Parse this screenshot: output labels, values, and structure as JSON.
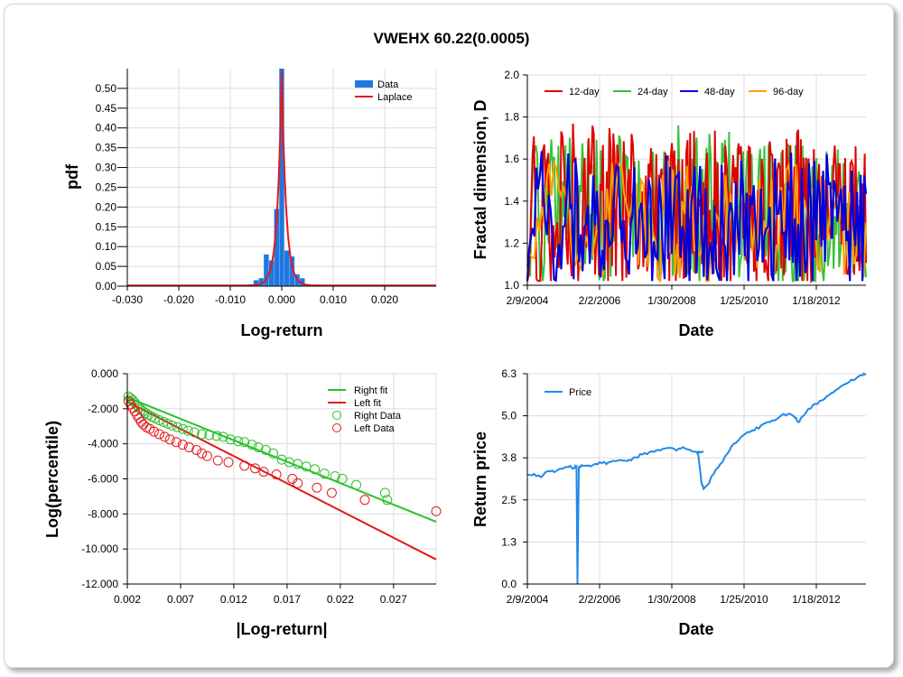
{
  "title": "VWEHX 60.22(0.0005)",
  "chart_data": [
    {
      "type": "bar",
      "id": "pdf",
      "xlabel": "Log-return",
      "ylabel": "pdf",
      "xlim": [
        -0.03,
        0.03
      ],
      "ylim": [
        0,
        0.55
      ],
      "x_ticks": [
        "-0.030",
        "-0.020",
        "-0.010",
        "0.000",
        "0.010",
        "0.020"
      ],
      "x_tick_values": [
        -0.03,
        -0.02,
        -0.01,
        0.0,
        0.01,
        0.02
      ],
      "y_ticks": [
        "0.00",
        "0.05",
        "0.10",
        "0.15",
        "0.20",
        "0.25",
        "0.30",
        "0.35",
        "0.40",
        "0.45",
        "0.50"
      ],
      "y_tick_values": [
        0,
        0.05,
        0.1,
        0.15,
        0.2,
        0.25,
        0.3,
        0.35,
        0.4,
        0.45,
        0.5
      ],
      "legend": [
        "Data",
        "Laplace"
      ],
      "bar_width": 0.001,
      "bars": [
        {
          "x": -0.006,
          "y": 0.005
        },
        {
          "x": -0.005,
          "y": 0.015
        },
        {
          "x": -0.004,
          "y": 0.02
        },
        {
          "x": -0.003,
          "y": 0.08
        },
        {
          "x": -0.002,
          "y": 0.065
        },
        {
          "x": -0.001,
          "y": 0.195
        },
        {
          "x": 0.0,
          "y": 0.55
        },
        {
          "x": 0.001,
          "y": 0.09
        },
        {
          "x": 0.002,
          "y": 0.075
        },
        {
          "x": 0.003,
          "y": 0.03
        },
        {
          "x": 0.004,
          "y": 0.02
        },
        {
          "x": 0.005,
          "y": 0.005
        },
        {
          "x": 0.007,
          "y": 0.004
        },
        {
          "x": 0.009,
          "y": 0.003
        },
        {
          "x": 0.011,
          "y": 0.003
        },
        {
          "x": 0.014,
          "y": 0.002
        },
        {
          "x": 0.016,
          "y": 0.002
        },
        {
          "x": 0.019,
          "y": 0.002
        },
        {
          "x": 0.021,
          "y": 0.002
        }
      ],
      "laplace": {
        "center": 0.0,
        "peak": 0.54,
        "scale": 0.00085
      },
      "colors": {
        "bars": "#1f78e0",
        "fit": "#e31a1c"
      }
    },
    {
      "type": "line",
      "id": "fractal",
      "xlabel": "Date",
      "ylabel": "Fractal dimension, D",
      "ylim": [
        1.0,
        2.0
      ],
      "x_ticks": [
        "2/9/2004",
        "2/2/2006",
        "1/30/2008",
        "1/25/2010",
        "1/18/2012"
      ],
      "y_ticks": [
        "1.0",
        "1.2",
        "1.4",
        "1.6",
        "1.8",
        "2.0"
      ],
      "y_tick_values": [
        1.0,
        1.2,
        1.4,
        1.6,
        1.8,
        2.0
      ],
      "series": [
        {
          "name": "12-day",
          "color": "#e00000"
        },
        {
          "name": "24-day",
          "color": "#3cc03c"
        },
        {
          "name": "48-day",
          "color": "#0000dd"
        },
        {
          "name": "96-day",
          "color": "#ffa000"
        }
      ]
    },
    {
      "type": "scatter",
      "id": "tail",
      "xlabel": "|Log-return|",
      "ylabel": "Log(percentile)",
      "xlim": [
        0.002,
        0.031
      ],
      "ylim": [
        -12.0,
        0.0
      ],
      "x_ticks": [
        "0.002",
        "0.007",
        "0.012",
        "0.017",
        "0.022",
        "0.027"
      ],
      "x_tick_values": [
        0.002,
        0.007,
        0.012,
        0.017,
        0.022,
        0.027
      ],
      "y_ticks": [
        "0.000",
        "-2.000",
        "-4.000",
        "-6.000",
        "-8.000",
        "-10.000",
        "-12.000"
      ],
      "y_tick_values": [
        0,
        -2,
        -4,
        -6,
        -8,
        -10,
        -12
      ],
      "series": [
        {
          "name": "Right fit",
          "color": "#2cc02c",
          "line": [
            [
              0.002,
              -1.35
            ],
            [
              0.031,
              -8.45
            ]
          ]
        },
        {
          "name": "Left fit",
          "color": "#e31a1c",
          "line": [
            [
              0.002,
              -1.6
            ],
            [
              0.031,
              -10.6
            ]
          ]
        },
        {
          "name": "Right Data",
          "color": "#2cc02c",
          "points": [
            [
              0.0021,
              -1.3
            ],
            [
              0.0023,
              -1.4
            ],
            [
              0.0025,
              -1.5
            ],
            [
              0.0027,
              -1.65
            ],
            [
              0.0029,
              -1.8
            ],
            [
              0.0031,
              -1.95
            ],
            [
              0.0033,
              -2.05
            ],
            [
              0.0035,
              -2.15
            ],
            [
              0.0037,
              -2.25
            ],
            [
              0.004,
              -2.35
            ],
            [
              0.0043,
              -2.45
            ],
            [
              0.0046,
              -2.55
            ],
            [
              0.005,
              -2.65
            ],
            [
              0.0054,
              -2.75
            ],
            [
              0.0058,
              -2.85
            ],
            [
              0.0062,
              -2.95
            ],
            [
              0.0067,
              -3.05
            ],
            [
              0.0072,
              -3.15
            ],
            [
              0.0077,
              -3.25
            ],
            [
              0.0083,
              -3.35
            ],
            [
              0.009,
              -3.45
            ],
            [
              0.0097,
              -3.5
            ],
            [
              0.0104,
              -3.55
            ],
            [
              0.011,
              -3.6
            ],
            [
              0.0117,
              -3.75
            ],
            [
              0.0124,
              -3.85
            ],
            [
              0.013,
              -3.9
            ],
            [
              0.0137,
              -4.05
            ],
            [
              0.0143,
              -4.2
            ],
            [
              0.015,
              -4.35
            ],
            [
              0.0157,
              -4.55
            ],
            [
              0.0165,
              -4.9
            ],
            [
              0.0172,
              -5.05
            ],
            [
              0.018,
              -5.15
            ],
            [
              0.0188,
              -5.3
            ],
            [
              0.0196,
              -5.45
            ],
            [
              0.0205,
              -5.7
            ],
            [
              0.0215,
              -5.85
            ],
            [
              0.0222,
              -6.0
            ],
            [
              0.0235,
              -6.35
            ],
            [
              0.0262,
              -6.8
            ],
            [
              0.0264,
              -7.2
            ]
          ]
        },
        {
          "name": "Left Data",
          "color": "#e31a1c",
          "points": [
            [
              0.0021,
              -1.55
            ],
            [
              0.0023,
              -1.75
            ],
            [
              0.0025,
              -1.95
            ],
            [
              0.0027,
              -2.15
            ],
            [
              0.0029,
              -2.35
            ],
            [
              0.0031,
              -2.55
            ],
            [
              0.0033,
              -2.75
            ],
            [
              0.0035,
              -2.9
            ],
            [
              0.0038,
              -3.05
            ],
            [
              0.0041,
              -3.15
            ],
            [
              0.0045,
              -3.3
            ],
            [
              0.005,
              -3.45
            ],
            [
              0.0055,
              -3.6
            ],
            [
              0.006,
              -3.75
            ],
            [
              0.0066,
              -3.9
            ],
            [
              0.0072,
              -4.05
            ],
            [
              0.0078,
              -4.2
            ],
            [
              0.0085,
              -4.35
            ],
            [
              0.009,
              -4.55
            ],
            [
              0.0095,
              -4.7
            ],
            [
              0.0105,
              -4.95
            ],
            [
              0.0115,
              -5.05
            ],
            [
              0.013,
              -5.25
            ],
            [
              0.014,
              -5.4
            ],
            [
              0.0148,
              -5.6
            ],
            [
              0.016,
              -5.75
            ],
            [
              0.0175,
              -6.0
            ],
            [
              0.018,
              -6.25
            ],
            [
              0.0198,
              -6.5
            ],
            [
              0.0212,
              -6.8
            ],
            [
              0.0243,
              -7.2
            ],
            [
              0.031,
              -7.85
            ]
          ]
        }
      ]
    },
    {
      "type": "line",
      "id": "price",
      "xlabel": "Date",
      "ylabel": "Return price",
      "ylim": [
        0.0,
        6.3
      ],
      "x_ticks": [
        "2/9/2004",
        "2/2/2006",
        "1/30/2008",
        "1/25/2010",
        "1/18/2012"
      ],
      "y_ticks": [
        "0.0",
        "1.3",
        "2.5",
        "3.8",
        "5.0",
        "6.3"
      ],
      "y_tick_values": [
        0.0,
        1.26,
        2.52,
        3.78,
        5.04,
        6.3
      ],
      "series": [
        {
          "name": "Price",
          "color": "#1f8ae8",
          "points": [
            [
              0.0,
              3.28
            ],
            [
              0.02,
              3.3
            ],
            [
              0.04,
              3.2
            ],
            [
              0.06,
              3.38
            ],
            [
              0.08,
              3.35
            ],
            [
              0.1,
              3.45
            ],
            [
              0.12,
              3.5
            ],
            [
              0.14,
              3.48
            ],
            [
              0.145,
              3.52
            ],
            [
              0.148,
              0.0
            ],
            [
              0.152,
              3.5
            ],
            [
              0.16,
              3.56
            ],
            [
              0.18,
              3.55
            ],
            [
              0.2,
              3.6
            ],
            [
              0.22,
              3.62
            ],
            [
              0.24,
              3.65
            ],
            [
              0.26,
              3.68
            ],
            [
              0.28,
              3.7
            ],
            [
              0.3,
              3.72
            ],
            [
              0.32,
              3.8
            ],
            [
              0.34,
              3.88
            ],
            [
              0.36,
              3.95
            ],
            [
              0.38,
              4.0
            ],
            [
              0.4,
              4.05
            ],
            [
              0.42,
              4.08
            ],
            [
              0.44,
              4.0
            ],
            [
              0.46,
              4.1
            ],
            [
              0.48,
              4.02
            ],
            [
              0.5,
              3.95
            ],
            [
              0.52,
              3.98
            ],
            [
              0.5,
              3.95
            ],
            [
              0.505,
              3.85
            ],
            [
              0.51,
              3.4
            ],
            [
              0.515,
              3.0
            ],
            [
              0.52,
              2.85
            ],
            [
              0.53,
              2.95
            ],
            [
              0.55,
              3.3
            ],
            [
              0.57,
              3.6
            ],
            [
              0.59,
              3.9
            ],
            [
              0.61,
              4.2
            ],
            [
              0.63,
              4.4
            ],
            [
              0.65,
              4.55
            ],
            [
              0.67,
              4.6
            ],
            [
              0.69,
              4.75
            ],
            [
              0.71,
              4.85
            ],
            [
              0.73,
              4.9
            ],
            [
              0.75,
              5.05
            ],
            [
              0.77,
              5.1
            ],
            [
              0.79,
              4.98
            ],
            [
              0.8,
              4.85
            ],
            [
              0.81,
              5.0
            ],
            [
              0.83,
              5.25
            ],
            [
              0.85,
              5.4
            ],
            [
              0.87,
              5.5
            ],
            [
              0.89,
              5.65
            ],
            [
              0.91,
              5.8
            ],
            [
              0.93,
              5.95
            ],
            [
              0.95,
              6.05
            ],
            [
              0.97,
              6.15
            ],
            [
              0.99,
              6.25
            ],
            [
              1.0,
              6.3
            ]
          ]
        }
      ]
    }
  ]
}
